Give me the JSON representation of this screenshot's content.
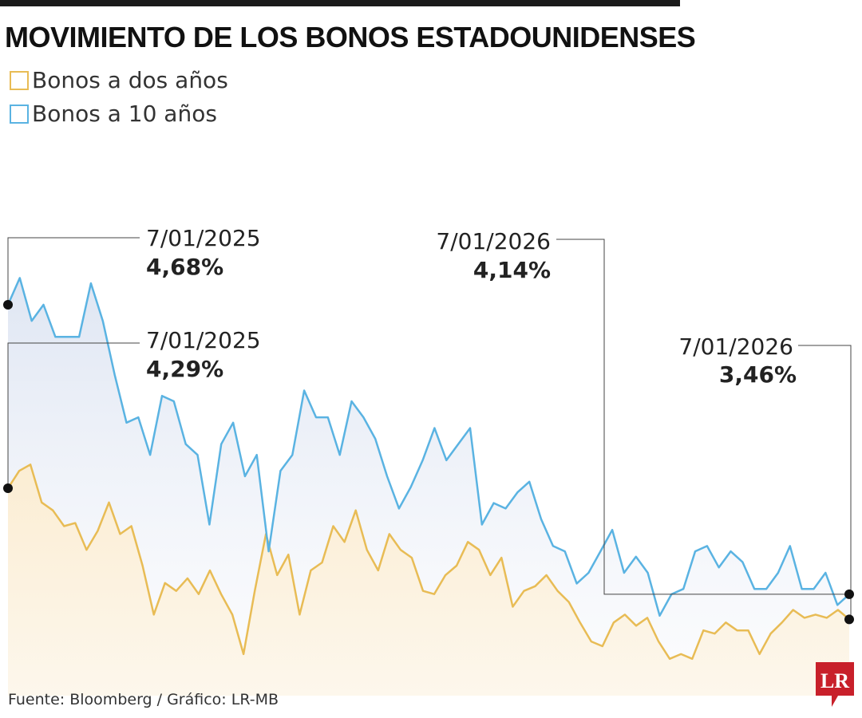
{
  "title": "MOVIMIENTO DE LOS BONOS ESTADOUNIDENSES",
  "source": "Fuente: Bloomberg / Gráfico: LR-MB",
  "logo": "LR",
  "colors": {
    "two_year": "#e8bc55",
    "ten_year": "#5ab3e2",
    "logo": "#c8202a"
  },
  "chart_data": {
    "type": "line",
    "title": "MOVIMIENTO DE LOS BONOS ESTADOUNIDENSES",
    "x_range": [
      "7/01/2025",
      "7/01/2026"
    ],
    "legend": "top-left",
    "grid": false,
    "series": [
      {
        "name": "Bonos a dos años",
        "color": "#e8bc55",
        "values": [
          4.29,
          4.4,
          4.44,
          4.2,
          4.15,
          4.05,
          4.07,
          3.9,
          4.02,
          4.2,
          4.0,
          4.05,
          3.8,
          3.49,
          3.69,
          3.64,
          3.72,
          3.62,
          3.77,
          3.62,
          3.49,
          3.24,
          3.64,
          4.0,
          3.74,
          3.87,
          3.49,
          3.77,
          3.82,
          4.05,
          3.95,
          4.15,
          3.9,
          3.77,
          4.0,
          3.9,
          3.85,
          3.64,
          3.62,
          3.74,
          3.8,
          3.95,
          3.9,
          3.74,
          3.85,
          3.54,
          3.64,
          3.67,
          3.74,
          3.64,
          3.57,
          3.44,
          3.32,
          3.29,
          3.44,
          3.49,
          3.42,
          3.47,
          3.32,
          3.21,
          3.24,
          3.21,
          3.39,
          3.37,
          3.44,
          3.39,
          3.39,
          3.24,
          3.37,
          3.44,
          3.52,
          3.47,
          3.49,
          3.47,
          3.52,
          3.46
        ]
      },
      {
        "name": "Bonos a 10 años",
        "color": "#5ab3e2",
        "values": [
          4.68,
          4.73,
          4.65,
          4.68,
          4.62,
          4.62,
          4.62,
          4.72,
          4.65,
          4.55,
          4.46,
          4.47,
          4.4,
          4.51,
          4.5,
          4.42,
          4.4,
          4.27,
          4.42,
          4.46,
          4.36,
          4.4,
          4.22,
          4.37,
          4.4,
          4.52,
          4.47,
          4.47,
          4.4,
          4.5,
          4.47,
          4.43,
          4.36,
          4.3,
          4.34,
          4.39,
          4.45,
          4.39,
          4.42,
          4.45,
          4.27,
          4.31,
          4.3,
          4.33,
          4.35,
          4.28,
          4.23,
          4.22,
          4.16,
          4.18,
          4.22,
          4.26,
          4.18,
          4.21,
          4.18,
          4.1,
          4.14,
          4.15,
          4.22,
          4.23,
          4.19,
          4.22,
          4.2,
          4.15,
          4.15,
          4.18,
          4.23,
          4.15,
          4.15,
          4.18,
          4.12,
          4.14
        ]
      }
    ],
    "annotations": [
      {
        "series": "Bonos a 10 años",
        "date": "7/01/2025",
        "value": "4,68%"
      },
      {
        "series": "Bonos a dos años",
        "date": "7/01/2025",
        "value": "4,29%"
      },
      {
        "series": "Bonos a 10 años",
        "date": "7/01/2026",
        "value": "4,14%"
      },
      {
        "series": "Bonos a dos años",
        "date": "7/01/2026",
        "value": "3,46%"
      }
    ]
  }
}
